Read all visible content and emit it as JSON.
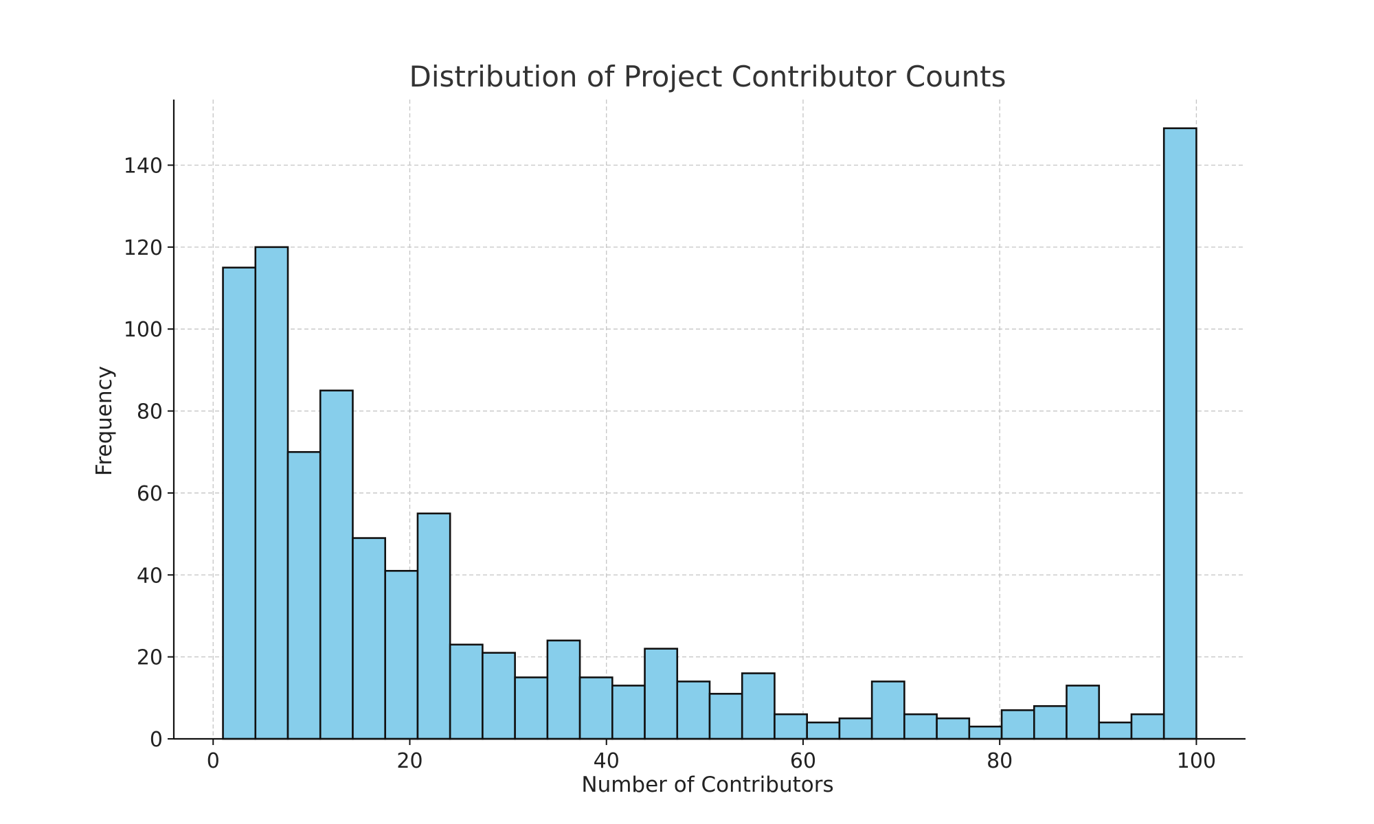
{
  "chart_data": {
    "type": "bar",
    "title": "Distribution of Project Contributor Counts",
    "xlabel": "Number of Contributors",
    "ylabel": "Frequency",
    "xlim": [
      -4,
      105
    ],
    "ylim": [
      0,
      156
    ],
    "xticks": [
      0,
      20,
      40,
      60,
      80,
      100
    ],
    "yticks": [
      0,
      20,
      40,
      60,
      80,
      100,
      120,
      140
    ],
    "grid": true,
    "bar_color": "#87ceeb",
    "edge_color": "#111111",
    "bins": [
      {
        "start": 1.0,
        "end": 4.3,
        "count": 115
      },
      {
        "start": 4.3,
        "end": 7.6,
        "count": 120
      },
      {
        "start": 7.6,
        "end": 10.9,
        "count": 70
      },
      {
        "start": 10.9,
        "end": 14.2,
        "count": 85
      },
      {
        "start": 14.2,
        "end": 17.5,
        "count": 49
      },
      {
        "start": 17.5,
        "end": 20.8,
        "count": 41
      },
      {
        "start": 20.8,
        "end": 24.1,
        "count": 55
      },
      {
        "start": 24.1,
        "end": 27.4,
        "count": 23
      },
      {
        "start": 27.4,
        "end": 30.7,
        "count": 21
      },
      {
        "start": 30.7,
        "end": 34.0,
        "count": 15
      },
      {
        "start": 34.0,
        "end": 37.3,
        "count": 24
      },
      {
        "start": 37.3,
        "end": 40.6,
        "count": 15
      },
      {
        "start": 40.6,
        "end": 43.9,
        "count": 13
      },
      {
        "start": 43.9,
        "end": 47.2,
        "count": 22
      },
      {
        "start": 47.2,
        "end": 50.5,
        "count": 14
      },
      {
        "start": 50.5,
        "end": 53.8,
        "count": 11
      },
      {
        "start": 53.8,
        "end": 57.1,
        "count": 16
      },
      {
        "start": 57.1,
        "end": 60.4,
        "count": 6
      },
      {
        "start": 60.4,
        "end": 63.7,
        "count": 4
      },
      {
        "start": 63.7,
        "end": 67.0,
        "count": 5
      },
      {
        "start": 67.0,
        "end": 70.3,
        "count": 14
      },
      {
        "start": 70.3,
        "end": 73.6,
        "count": 6
      },
      {
        "start": 73.6,
        "end": 76.9,
        "count": 5
      },
      {
        "start": 76.9,
        "end": 80.2,
        "count": 3
      },
      {
        "start": 80.2,
        "end": 83.5,
        "count": 7
      },
      {
        "start": 83.5,
        "end": 86.8,
        "count": 8
      },
      {
        "start": 86.8,
        "end": 90.1,
        "count": 13
      },
      {
        "start": 90.1,
        "end": 93.4,
        "count": 4
      },
      {
        "start": 93.4,
        "end": 96.7,
        "count": 6
      },
      {
        "start": 96.7,
        "end": 100.0,
        "count": 149
      }
    ]
  }
}
